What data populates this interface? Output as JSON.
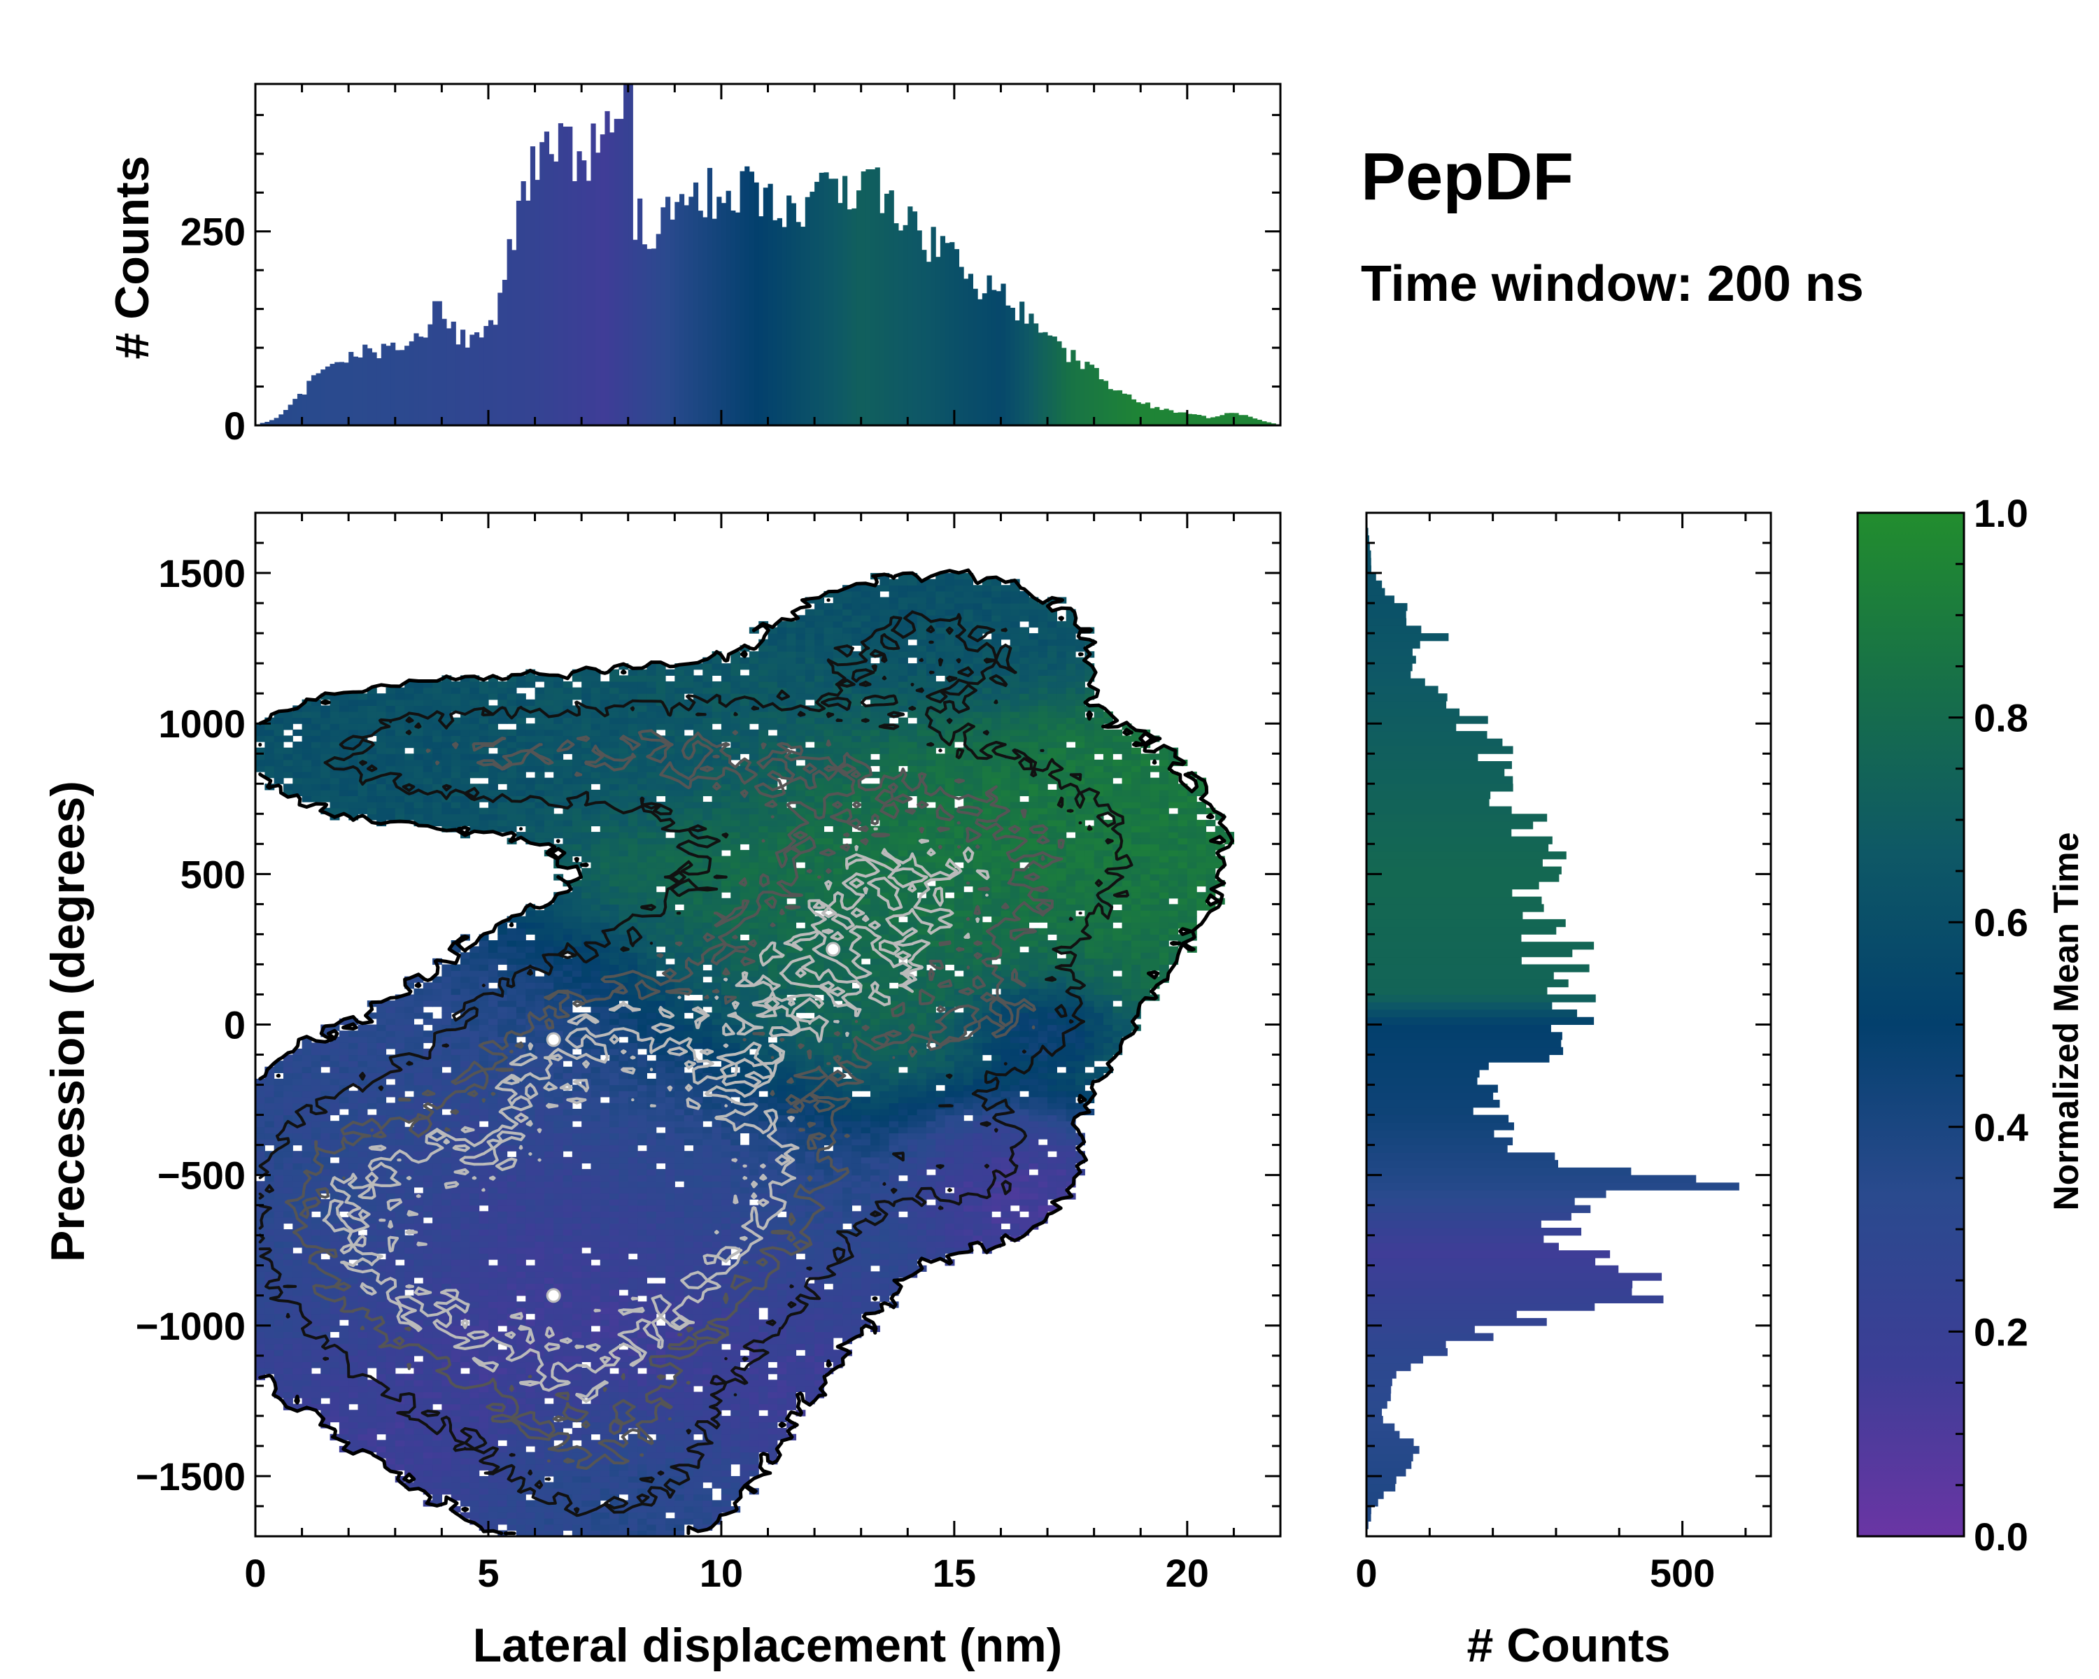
{
  "colors": {
    "colormap": [
      "#6a35a4",
      "#3c3e96",
      "#2a4a8e",
      "#03406d",
      "#0e5866",
      "#177048",
      "#228d2e"
    ],
    "contour_dark": "#111111",
    "contour_mid": "#555555",
    "contour_light": "#bbbbbb"
  },
  "header": {
    "title": "PepDF",
    "subtitle": "Time window: 200 ns"
  },
  "chart_data": [
    {
      "id": "joint",
      "type": "heatmap",
      "xlabel": "Lateral displacement (nm)",
      "ylabel": "Precession (degrees)",
      "xlim": [
        0,
        22
      ],
      "ylim": [
        -1700,
        1700
      ],
      "xticks": [
        0,
        5,
        10,
        15,
        20
      ],
      "yticks": [
        -1500,
        -1000,
        -500,
        0,
        500,
        1000,
        1500
      ],
      "color_value": "Normalized Mean Time",
      "clusters": [
        {
          "x": 6.5,
          "y": -850,
          "sx": 2.8,
          "sy": 350,
          "w": 1.0,
          "t": 0.15
        },
        {
          "x": 9.5,
          "y": -500,
          "sx": 2.5,
          "sy": 250,
          "w": 0.75,
          "t": 0.35
        },
        {
          "x": 2.5,
          "y": -600,
          "sx": 1.8,
          "sy": 280,
          "w": 0.6,
          "t": 0.35
        },
        {
          "x": 7.0,
          "y": -100,
          "sx": 2.0,
          "sy": 220,
          "w": 0.55,
          "t": 0.35
        },
        {
          "x": 12.5,
          "y": 150,
          "sx": 3.0,
          "sy": 280,
          "w": 0.7,
          "t": 0.78
        },
        {
          "x": 15.0,
          "y": 600,
          "sx": 3.0,
          "sy": 250,
          "w": 0.55,
          "t": 0.88
        },
        {
          "x": 4.0,
          "y": 900,
          "sx": 2.5,
          "sy": 130,
          "w": 0.4,
          "t": 0.62
        },
        {
          "x": 9.5,
          "y": 900,
          "sx": 2.8,
          "sy": 160,
          "w": 0.45,
          "t": 0.65
        },
        {
          "x": 14.5,
          "y": 1250,
          "sx": 2.0,
          "sy": 150,
          "w": 0.35,
          "t": 0.62
        },
        {
          "x": 15.5,
          "y": -450,
          "sx": 1.3,
          "sy": 160,
          "w": 0.3,
          "t": 0.08
        },
        {
          "x": 16.5,
          "y": 0,
          "sx": 1.0,
          "sy": 100,
          "w": 0.2,
          "t": 0.08
        },
        {
          "x": 7.5,
          "y": -1450,
          "sx": 1.6,
          "sy": 180,
          "w": 0.3,
          "t": 0.42
        }
      ],
      "hotspots": [
        {
          "x": 6.4,
          "y": -900,
          "label": ""
        },
        {
          "x": 12.4,
          "y": 250,
          "label": ""
        },
        {
          "x": 6.4,
          "y": -50,
          "label": ""
        }
      ]
    },
    {
      "id": "top-histogram",
      "type": "bar",
      "ylabel": "# Counts",
      "xlim": [
        0,
        22
      ],
      "ylim": [
        0,
        440
      ],
      "yticks": [
        0,
        250
      ],
      "bin_width": 0.1,
      "anchors_x": [
        0,
        0.5,
        1.0,
        1.5,
        2.0,
        2.5,
        3.0,
        3.5,
        4.0,
        4.5,
        5.0,
        5.3,
        5.6,
        6.0,
        6.3,
        6.6,
        7.0,
        7.4,
        7.8,
        8.1,
        8.5,
        9.0,
        9.5,
        10.0,
        10.5,
        11.0,
        11.5,
        12.0,
        12.5,
        13.0,
        13.5,
        14.0,
        14.5,
        15.0,
        15.5,
        16.0,
        16.5,
        17.0,
        17.5,
        18.0,
        18.5,
        19.0,
        19.5,
        20.0,
        20.5,
        21.0,
        21.5,
        22.0
      ],
      "anchors_y": [
        0,
        10,
        40,
        80,
        90,
        95,
        100,
        115,
        130,
        110,
        115,
        170,
        260,
        330,
        360,
        350,
        330,
        360,
        380,
        270,
        250,
        280,
        300,
        295,
        300,
        305,
        275,
        295,
        290,
        310,
        300,
        260,
        235,
        215,
        185,
        170,
        140,
        115,
        90,
        70,
        45,
        30,
        20,
        15,
        10,
        18,
        8,
        0
      ],
      "spikes": [
        {
          "x": 8.0,
          "v": 440
        },
        {
          "x": 3.9,
          "v": 160
        },
        {
          "x": 7.8,
          "v": 395
        },
        {
          "x": 13.2,
          "v": 330
        },
        {
          "x": 6.7,
          "v": 385
        }
      ],
      "time_anchors_x": [
        0,
        3,
        6,
        7.5,
        9,
        11,
        13,
        14.5,
        16,
        17.5,
        19,
        20.5,
        22
      ],
      "time_anchors_t": [
        0.35,
        0.32,
        0.24,
        0.15,
        0.35,
        0.52,
        0.72,
        0.65,
        0.55,
        0.85,
        0.95,
        0.95,
        0.95
      ]
    },
    {
      "id": "right-histogram",
      "type": "bar",
      "xlabel": "# Counts",
      "xlim": [
        0,
        640
      ],
      "xticks": [
        0,
        500
      ],
      "ylim": [
        -1700,
        1700
      ],
      "bin_width": 25,
      "anchors_y": [
        -1700,
        -1600,
        -1500,
        -1400,
        -1300,
        -1200,
        -1100,
        -1000,
        -900,
        -850,
        -800,
        -700,
        -600,
        -530,
        -500,
        -450,
        -400,
        -300,
        -200,
        -100,
        0,
        100,
        200,
        300,
        400,
        500,
        600,
        700,
        800,
        900,
        1000,
        1100,
        1200,
        1300,
        1400,
        1500,
        1700
      ],
      "anchors_v": [
        0,
        10,
        60,
        80,
        20,
        40,
        90,
        230,
        380,
        430,
        350,
        280,
        360,
        520,
        460,
        300,
        240,
        200,
        190,
        260,
        320,
        330,
        300,
        280,
        240,
        270,
        260,
        240,
        220,
        200,
        170,
        100,
        70,
        90,
        50,
        10,
        0
      ],
      "spikes": [
        {
          "y": -540,
          "v": 590
        },
        {
          "y": -920,
          "v": 470
        },
        {
          "y": -680,
          "v": 340
        },
        {
          "y": 260,
          "v": 360
        },
        {
          "y": 10,
          "v": 360
        },
        {
          "y": 1290,
          "v": 130
        }
      ],
      "time_anchors_y": [
        -1700,
        -1100,
        -750,
        -550,
        -300,
        0,
        100,
        500,
        1000,
        1400,
        1700
      ],
      "time_anchors_t": [
        0.4,
        0.3,
        0.15,
        0.35,
        0.45,
        0.5,
        0.75,
        0.78,
        0.7,
        0.62,
        0.6
      ]
    },
    {
      "id": "colorbar",
      "type": "colorbar",
      "label": "Normalized Mean Time",
      "range": [
        0.0,
        1.0
      ],
      "tick_labels": [
        "0.0",
        "0.2",
        "0.4",
        "0.6",
        "0.8",
        "1.0"
      ],
      "tick_values": [
        0.0,
        0.2,
        0.4,
        0.6,
        0.8,
        1.0
      ]
    }
  ]
}
